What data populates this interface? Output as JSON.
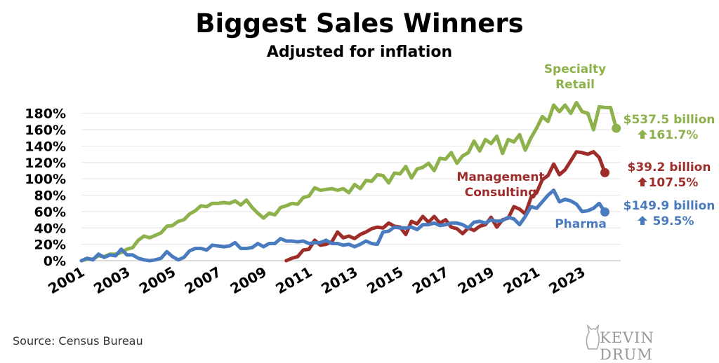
{
  "title": "Biggest Sales Winners",
  "subtitle": "Adjusted for inflation",
  "source": "Source:  Census Bureau",
  "brand": "KEVIN DRUM",
  "chart_data": {
    "type": "line",
    "xlim": [
      2001,
      2024.2
    ],
    "ylim": [
      0,
      190
    ],
    "yticks": [
      0,
      20,
      40,
      60,
      80,
      100,
      120,
      140,
      160,
      180
    ],
    "ytick_labels": [
      "0%",
      "20%",
      "40%",
      "60%",
      "80%",
      "100%",
      "120%",
      "140%",
      "160%",
      "180%"
    ],
    "xticks": [
      2001,
      2003,
      2005,
      2007,
      2009,
      2011,
      2013,
      2015,
      2017,
      2019,
      2021,
      2023
    ],
    "xtick_labels": [
      "2001",
      "2003",
      "2005",
      "2007",
      "2009",
      "2011",
      "2013",
      "2015",
      "2017",
      "2019",
      "2021",
      "2023"
    ],
    "grid": "horizontal",
    "series": [
      {
        "name": "Specialty Retail",
        "label_lines": [
          "Specialty",
          "Retail"
        ],
        "color": "#8db14b",
        "end_value": "$537.5 billion",
        "end_change": "161.7%",
        "points": [
          [
            2001.0,
            0
          ],
          [
            2001.25,
            2
          ],
          [
            2001.5,
            2
          ],
          [
            2001.75,
            6
          ],
          [
            2002.0,
            5
          ],
          [
            2002.25,
            8
          ],
          [
            2002.5,
            8
          ],
          [
            2002.75,
            10
          ],
          [
            2003.0,
            14
          ],
          [
            2003.25,
            16
          ],
          [
            2003.5,
            25
          ],
          [
            2003.75,
            30
          ],
          [
            2004.0,
            28
          ],
          [
            2004.25,
            31
          ],
          [
            2004.5,
            34
          ],
          [
            2004.75,
            42
          ],
          [
            2005.0,
            43
          ],
          [
            2005.25,
            48
          ],
          [
            2005.5,
            50
          ],
          [
            2005.75,
            57
          ],
          [
            2006.0,
            61
          ],
          [
            2006.25,
            67
          ],
          [
            2006.5,
            66
          ],
          [
            2006.75,
            70
          ],
          [
            2007.0,
            70
          ],
          [
            2007.25,
            71
          ],
          [
            2007.5,
            70
          ],
          [
            2007.75,
            73
          ],
          [
            2008.0,
            68
          ],
          [
            2008.25,
            74
          ],
          [
            2008.5,
            65
          ],
          [
            2008.75,
            58
          ],
          [
            2009.0,
            52
          ],
          [
            2009.25,
            58
          ],
          [
            2009.5,
            56
          ],
          [
            2009.75,
            65
          ],
          [
            2010.0,
            67
          ],
          [
            2010.25,
            70
          ],
          [
            2010.5,
            69
          ],
          [
            2010.75,
            77
          ],
          [
            2011.0,
            79
          ],
          [
            2011.25,
            89
          ],
          [
            2011.5,
            86
          ],
          [
            2011.75,
            87
          ],
          [
            2012.0,
            88
          ],
          [
            2012.25,
            86
          ],
          [
            2012.5,
            88
          ],
          [
            2012.75,
            83
          ],
          [
            2013.0,
            93
          ],
          [
            2013.25,
            88
          ],
          [
            2013.5,
            98
          ],
          [
            2013.75,
            97
          ],
          [
            2014.0,
            105
          ],
          [
            2014.25,
            104
          ],
          [
            2014.5,
            95
          ],
          [
            2014.75,
            107
          ],
          [
            2015.0,
            106
          ],
          [
            2015.25,
            115
          ],
          [
            2015.5,
            101
          ],
          [
            2015.75,
            112
          ],
          [
            2016.0,
            114
          ],
          [
            2016.25,
            119
          ],
          [
            2016.5,
            110
          ],
          [
            2016.75,
            125
          ],
          [
            2017.0,
            124
          ],
          [
            2017.25,
            132
          ],
          [
            2017.5,
            119
          ],
          [
            2017.75,
            128
          ],
          [
            2018.0,
            132
          ],
          [
            2018.25,
            146
          ],
          [
            2018.5,
            134
          ],
          [
            2018.75,
            148
          ],
          [
            2019.0,
            143
          ],
          [
            2019.25,
            152
          ],
          [
            2019.5,
            131
          ],
          [
            2019.75,
            148
          ],
          [
            2020.0,
            145
          ],
          [
            2020.25,
            154
          ],
          [
            2020.5,
            135
          ],
          [
            2020.75,
            150
          ],
          [
            2021.0,
            162
          ],
          [
            2021.25,
            176
          ],
          [
            2021.5,
            170
          ],
          [
            2021.75,
            190
          ],
          [
            2022.0,
            182
          ],
          [
            2022.25,
            190
          ],
          [
            2022.5,
            180
          ],
          [
            2022.75,
            193
          ],
          [
            2023.0,
            182
          ],
          [
            2023.25,
            180
          ],
          [
            2023.5,
            160
          ],
          [
            2023.75,
            188
          ],
          [
            2024.0,
            187
          ],
          [
            2024.25,
            187
          ],
          [
            2024.5,
            161.7
          ]
        ]
      },
      {
        "name": "Management Consulting",
        "label_lines": [
          "Management",
          "Consulting"
        ],
        "color": "#9e2d2a",
        "end_value": "$39.2 billion",
        "end_change": "107.5%",
        "points": [
          [
            2010.0,
            0
          ],
          [
            2010.25,
            3
          ],
          [
            2010.5,
            5
          ],
          [
            2010.75,
            13
          ],
          [
            2011.0,
            14
          ],
          [
            2011.25,
            25
          ],
          [
            2011.5,
            19
          ],
          [
            2011.75,
            20
          ],
          [
            2012.0,
            23
          ],
          [
            2012.25,
            35
          ],
          [
            2012.5,
            28
          ],
          [
            2012.75,
            30
          ],
          [
            2013.0,
            27
          ],
          [
            2013.25,
            32
          ],
          [
            2013.5,
            35
          ],
          [
            2013.75,
            39
          ],
          [
            2014.0,
            41
          ],
          [
            2014.25,
            40
          ],
          [
            2014.5,
            46
          ],
          [
            2014.75,
            42
          ],
          [
            2015.0,
            41
          ],
          [
            2015.25,
            32
          ],
          [
            2015.5,
            48
          ],
          [
            2015.75,
            45
          ],
          [
            2016.0,
            54
          ],
          [
            2016.25,
            47
          ],
          [
            2016.5,
            54
          ],
          [
            2016.75,
            46
          ],
          [
            2017.0,
            50
          ],
          [
            2017.25,
            41
          ],
          [
            2017.5,
            39
          ],
          [
            2017.75,
            33
          ],
          [
            2018.0,
            40
          ],
          [
            2018.25,
            37
          ],
          [
            2018.5,
            42
          ],
          [
            2018.75,
            44
          ],
          [
            2019.0,
            53
          ],
          [
            2019.25,
            41
          ],
          [
            2019.5,
            50
          ],
          [
            2019.75,
            52
          ],
          [
            2020.0,
            66
          ],
          [
            2020.25,
            63
          ],
          [
            2020.5,
            57
          ],
          [
            2020.75,
            77
          ],
          [
            2021.0,
            83
          ],
          [
            2021.25,
            99
          ],
          [
            2021.5,
            104
          ],
          [
            2021.75,
            118
          ],
          [
            2022.0,
            105
          ],
          [
            2022.25,
            111
          ],
          [
            2022.5,
            122
          ],
          [
            2022.75,
            133
          ],
          [
            2023.0,
            132
          ],
          [
            2023.25,
            130
          ],
          [
            2023.5,
            133
          ],
          [
            2023.75,
            126
          ],
          [
            2024.0,
            107.5
          ]
        ]
      },
      {
        "name": "Pharma",
        "label_lines": [
          "Pharma"
        ],
        "color": "#4a7bbf",
        "end_value": "$149.9 billion",
        "end_change": "59.5%",
        "points": [
          [
            2001.0,
            0
          ],
          [
            2001.25,
            3
          ],
          [
            2001.5,
            1
          ],
          [
            2001.75,
            8
          ],
          [
            2002.0,
            4
          ],
          [
            2002.25,
            7
          ],
          [
            2002.5,
            6
          ],
          [
            2002.75,
            14
          ],
          [
            2003.0,
            7
          ],
          [
            2003.25,
            7
          ],
          [
            2003.5,
            3
          ],
          [
            2003.75,
            1
          ],
          [
            2004.0,
            0
          ],
          [
            2004.25,
            1
          ],
          [
            2004.5,
            3
          ],
          [
            2004.75,
            11
          ],
          [
            2005.0,
            5
          ],
          [
            2005.25,
            1
          ],
          [
            2005.5,
            4
          ],
          [
            2005.75,
            12
          ],
          [
            2006.0,
            15
          ],
          [
            2006.25,
            15
          ],
          [
            2006.5,
            13
          ],
          [
            2006.75,
            19
          ],
          [
            2007.0,
            18
          ],
          [
            2007.25,
            17
          ],
          [
            2007.5,
            18
          ],
          [
            2007.75,
            22
          ],
          [
            2008.0,
            15
          ],
          [
            2008.25,
            15
          ],
          [
            2008.5,
            16
          ],
          [
            2008.75,
            21
          ],
          [
            2009.0,
            17
          ],
          [
            2009.25,
            21
          ],
          [
            2009.5,
            21
          ],
          [
            2009.75,
            27
          ],
          [
            2010.0,
            24
          ],
          [
            2010.25,
            24
          ],
          [
            2010.5,
            23
          ],
          [
            2010.75,
            24
          ],
          [
            2011.0,
            21
          ],
          [
            2011.25,
            22
          ],
          [
            2011.5,
            22
          ],
          [
            2011.75,
            25
          ],
          [
            2012.0,
            21
          ],
          [
            2012.25,
            21
          ],
          [
            2012.5,
            19
          ],
          [
            2012.75,
            20
          ],
          [
            2013.0,
            17
          ],
          [
            2013.25,
            20
          ],
          [
            2013.5,
            24
          ],
          [
            2013.75,
            21
          ],
          [
            2014.0,
            20
          ],
          [
            2014.25,
            35
          ],
          [
            2014.5,
            36
          ],
          [
            2014.75,
            41
          ],
          [
            2015.0,
            40
          ],
          [
            2015.25,
            40
          ],
          [
            2015.5,
            41
          ],
          [
            2015.75,
            38
          ],
          [
            2016.0,
            44
          ],
          [
            2016.25,
            44
          ],
          [
            2016.5,
            46
          ],
          [
            2016.75,
            43
          ],
          [
            2017.0,
            44
          ],
          [
            2017.25,
            46
          ],
          [
            2017.5,
            46
          ],
          [
            2017.75,
            44
          ],
          [
            2018.0,
            40
          ],
          [
            2018.25,
            47
          ],
          [
            2018.5,
            48
          ],
          [
            2018.75,
            46
          ],
          [
            2019.0,
            50
          ],
          [
            2019.25,
            48
          ],
          [
            2019.5,
            49
          ],
          [
            2019.75,
            53
          ],
          [
            2020.0,
            51
          ],
          [
            2020.25,
            44
          ],
          [
            2020.5,
            54
          ],
          [
            2020.75,
            66
          ],
          [
            2021.0,
            64
          ],
          [
            2021.25,
            72
          ],
          [
            2021.5,
            80
          ],
          [
            2021.75,
            86
          ],
          [
            2022.0,
            72
          ],
          [
            2022.25,
            75
          ],
          [
            2022.5,
            73
          ],
          [
            2022.75,
            69
          ],
          [
            2023.0,
            60
          ],
          [
            2023.25,
            61
          ],
          [
            2023.5,
            64
          ],
          [
            2023.75,
            70
          ],
          [
            2024.0,
            59.5
          ]
        ]
      }
    ]
  }
}
